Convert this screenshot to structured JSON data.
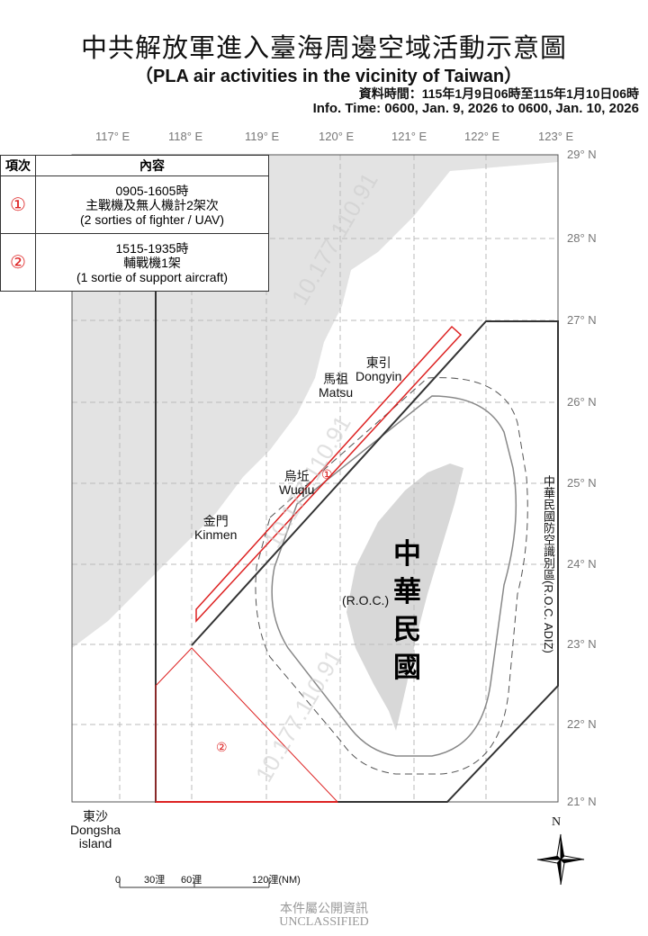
{
  "title_zh": "中共解放軍進入臺海周邊空域活動示意圖",
  "title_en": "（PLA air activities in the vicinity of Taiwan）",
  "info_zh": "資料時間：115年1月9日06時至115年1月10日06時",
  "info_en": "Info. Time: 0600, Jan. 9, 2026 to 0600, Jan. 10, 2026",
  "longitudes": [
    "117° E",
    "118° E",
    "119° E",
    "120° E",
    "121° E",
    "122° E",
    "123° E"
  ],
  "latitudes": [
    "29° N",
    "28° N",
    "27° N",
    "26° N",
    "25° N",
    "24° N",
    "23° N",
    "22° N",
    "21° N"
  ],
  "table": {
    "headers": [
      "項次",
      "內容"
    ],
    "rows": [
      {
        "marker": "①",
        "time": "0905-1605時",
        "zh": "主戰機及無人機計2架次",
        "en": "(2 sorties of fighter / UAV)"
      },
      {
        "marker": "②",
        "time": "1515-1935時",
        "zh": "輔戰機1架",
        "en": "(1 sortie of support aircraft)"
      }
    ]
  },
  "places": {
    "dongyin": "東引\nDongyin",
    "matsu": "馬祖\nMatsu",
    "wuqiu": "烏坵\nWuqiu",
    "kinmen": "金門\nKinmen",
    "dongsha": "東沙\nDongsha\nisland"
  },
  "roc_zh": "中華民國",
  "roc_en": "(R.O.C.)",
  "adiz_label": "中華民國防空識別區(R.O.C. ADIZ)",
  "zone_markers": [
    "①",
    "②"
  ],
  "scale": {
    "labels": [
      "0",
      "30浬",
      "60浬",
      "120浬(NM)"
    ]
  },
  "compass": "N",
  "footer_zh": "本件屬公開資訊",
  "footer_en": "UNCLASSIFIED",
  "watermark": "10.177.110.91",
  "colors": {
    "activity": "#d22222",
    "land": "#e3e3e3",
    "adiz": "#333333",
    "grid": "#bbbbbb"
  }
}
